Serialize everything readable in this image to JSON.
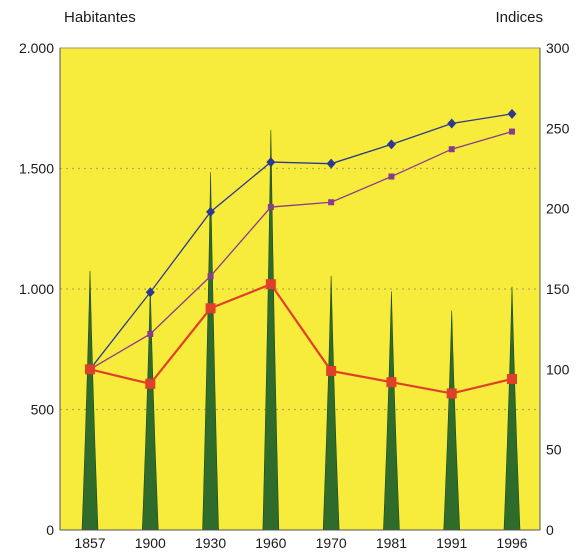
{
  "chart_data": {
    "type": "bar",
    "left_axis_label": "Habitantes",
    "right_axis_label": "Indices",
    "categories": [
      "1857",
      "1900",
      "1930",
      "1960",
      "1970",
      "1981",
      "1991",
      "1996"
    ],
    "y_left": {
      "range": [
        0,
        2000
      ],
      "ticks": [
        "0",
        "500",
        "1.000",
        "1.500",
        "2.000"
      ],
      "tick_values": [
        0,
        500,
        1000,
        1500,
        2000
      ]
    },
    "y_right": {
      "range": [
        0,
        300
      ],
      "ticks": [
        "0",
        "50",
        "100",
        "150",
        "200",
        "250",
        "300"
      ],
      "tick_values": [
        0,
        50,
        100,
        150,
        200,
        250,
        300
      ]
    },
    "grid": "dotted horizontal lines at left-axis ticks",
    "series": [
      {
        "kind": "spike-bar",
        "axis": "left",
        "color": "#2f6b2a",
        "values": [
          1075,
          1005,
          1485,
          1660,
          1055,
          990,
          910,
          1010
        ]
      },
      {
        "kind": "line",
        "axis": "right",
        "color": "#2b3a8f",
        "marker": "diamond",
        "values": [
          100,
          148,
          198,
          229,
          228,
          240,
          253,
          259
        ]
      },
      {
        "kind": "line",
        "axis": "right",
        "color": "#8a3c8c",
        "marker": "square",
        "values": [
          100,
          122,
          158,
          201,
          204,
          220,
          237,
          248
        ]
      },
      {
        "kind": "line",
        "axis": "right",
        "color": "#e0402a",
        "marker": "square",
        "values": [
          100,
          91,
          138,
          153,
          99,
          92,
          85,
          94
        ]
      }
    ],
    "colors": {
      "plot_background": "#f7ec3c",
      "plot_border": "#9a9a6a",
      "grid": "#b5aa50"
    }
  }
}
